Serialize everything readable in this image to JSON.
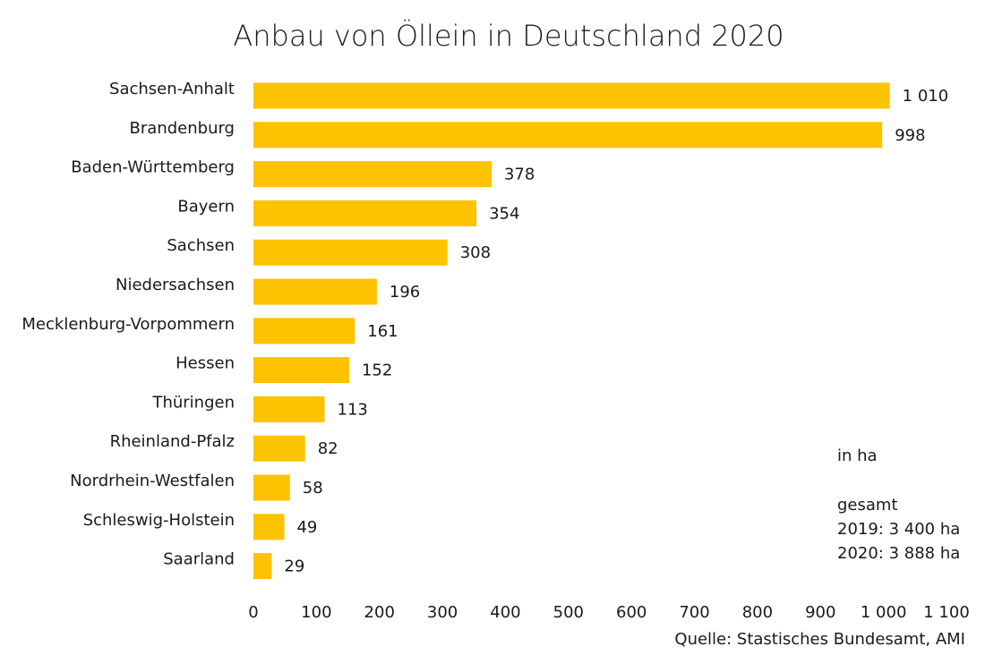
{
  "chart_data": {
    "type": "bar",
    "orientation": "horizontal",
    "title": "Anbau von Öllein in Deutschland 2020",
    "categories": [
      "Sachsen-Anhalt",
      "Brandenburg",
      "Baden-Württemberg",
      "Bayern",
      "Sachsen",
      "Niedersachsen",
      "Mecklenburg-Vorpommern",
      "Hessen",
      "Thüringen",
      "Rheinland-Pfalz",
      "Nordrhein-Westfalen",
      "Schleswig-Holstein",
      "Saarland"
    ],
    "values": [
      1010,
      998,
      378,
      354,
      308,
      196,
      161,
      152,
      113,
      82,
      58,
      49,
      29
    ],
    "value_labels": [
      "1 010",
      "998",
      "378",
      "354",
      "308",
      "196",
      "161",
      "152",
      "113",
      "82",
      "58",
      "49",
      "29"
    ],
    "xlim": [
      0,
      1100
    ],
    "x_ticks": [
      0,
      100,
      200,
      300,
      400,
      500,
      600,
      700,
      800,
      900,
      1000,
      1100
    ],
    "x_tick_labels": [
      "0",
      "100",
      "200",
      "300",
      "400",
      "500",
      "600",
      "700",
      "800",
      "900",
      "1 000",
      "1 100"
    ],
    "bar_color": "#fdc300",
    "grid": false,
    "unit_note": "in ha",
    "total_heading": "gesamt",
    "total_2019": "2019: 3 400 ha",
    "total_2020": "2020: 3 888 ha",
    "source": "Quelle: Stastisches Bundesamt, AMI"
  }
}
